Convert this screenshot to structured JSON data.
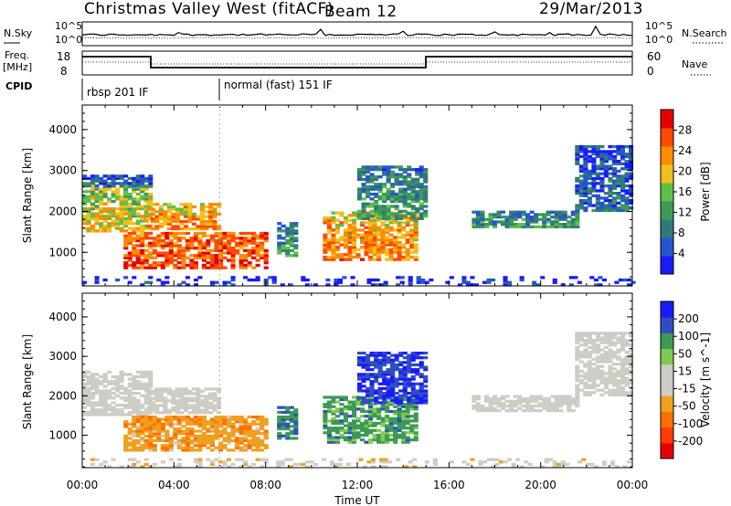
{
  "header": {
    "station": "Christmas Valley West (fitACF)",
    "beam": "Beam 12",
    "date": "29/Mar/2013"
  },
  "status_panels": {
    "noise": {
      "label_left": "N.Sky",
      "label_right": "N.Search",
      "tick_top": "10^5",
      "tick_bottom": "10^0"
    },
    "frequency": {
      "label_left_1": "Freq.",
      "label_left_2": "[MHz]",
      "label_right": "Nave",
      "left_ticks": [
        "18",
        "8"
      ],
      "right_ticks": [
        "60",
        "0"
      ]
    },
    "cpid": {
      "label": "CPID",
      "segments": [
        "rbsp 201 IF",
        "normal (fast) 151 IF"
      ],
      "switch_hour": 6
    }
  },
  "chart_data": [
    {
      "type": "heatmap",
      "parameter": "Power",
      "ylabel": "Slant Range [km]",
      "xlabel": "Time UT",
      "x_ticks": [
        "00:00",
        "04:00",
        "08:00",
        "12:00",
        "16:00",
        "20:00",
        "00:00"
      ],
      "xlim_hours": [
        0,
        24
      ],
      "ylim_km": [
        180,
        4600
      ],
      "y_ticks": [
        1000,
        2000,
        3000,
        4000
      ],
      "colorbar": {
        "label": "Power [dB]",
        "ticks": [
          4,
          8,
          12,
          16,
          20,
          24,
          28
        ],
        "range": [
          0,
          32
        ],
        "colors": [
          "#1a1aff",
          "#2655cc",
          "#2f7a7a",
          "#3d9a55",
          "#5fbf4a",
          "#f0c020",
          "#ff8c00",
          "#ff4a00",
          "#e60000"
        ]
      },
      "echo_regions": [
        {
          "t_start": 0.0,
          "t_end": 3.0,
          "r_low": 1500,
          "r_high": 2600,
          "level": 20
        },
        {
          "t_start": 0.0,
          "t_end": 3.0,
          "r_low": 2600,
          "r_high": 2900,
          "level": 8
        },
        {
          "t_start": 2.8,
          "t_end": 6.0,
          "r_low": 1550,
          "r_high": 2200,
          "level": 24
        },
        {
          "t_start": 1.8,
          "t_end": 8.0,
          "r_low": 600,
          "r_high": 1500,
          "level": 28
        },
        {
          "t_start": 8.5,
          "t_end": 9.3,
          "r_low": 900,
          "r_high": 1700,
          "level": 12
        },
        {
          "t_start": 10.5,
          "t_end": 14.6,
          "r_low": 800,
          "r_high": 2000,
          "level": 24
        },
        {
          "t_start": 12.0,
          "t_end": 15.0,
          "r_low": 1800,
          "r_high": 3100,
          "level": 12
        },
        {
          "t_start": 17.0,
          "t_end": 21.5,
          "r_low": 1600,
          "r_high": 2000,
          "level": 12
        },
        {
          "t_start": 21.5,
          "t_end": 24.0,
          "r_low": 2000,
          "r_high": 3600,
          "level": 8
        },
        {
          "t_start": 0.0,
          "t_end": 24.0,
          "r_low": 180,
          "r_high": 400,
          "level": 4
        }
      ]
    },
    {
      "type": "heatmap",
      "parameter": "Velocity",
      "ylabel": "Slant Range [km]",
      "xlabel": "Time UT",
      "x_ticks": [
        "00:00",
        "04:00",
        "08:00",
        "12:00",
        "16:00",
        "20:00",
        "00:00"
      ],
      "xlim_hours": [
        0,
        24
      ],
      "ylim_km": [
        180,
        4600
      ],
      "y_ticks": [
        1000,
        2000,
        3000,
        4000
      ],
      "colorbar": {
        "label": "Velocity [m s^-1]",
        "ticks": [
          200,
          100,
          50,
          15,
          -15,
          -50,
          -100,
          -200
        ],
        "range": [
          -250,
          250
        ],
        "colors": [
          "#e60000",
          "#ff3c00",
          "#ff7000",
          "#f0a020",
          "#cdcdc5",
          "#cdcdc5",
          "#7fcc50",
          "#3d9a55",
          "#2f4fc0",
          "#1a1aff"
        ]
      },
      "echo_regions": [
        {
          "t_start": 0.0,
          "t_end": 3.0,
          "r_low": 1500,
          "r_high": 2600,
          "level": 0
        },
        {
          "t_start": 2.8,
          "t_end": 6.0,
          "r_low": 1550,
          "r_high": 2200,
          "level": 0
        },
        {
          "t_start": 1.8,
          "t_end": 8.0,
          "r_low": 600,
          "r_high": 1500,
          "level": -80
        },
        {
          "t_start": 8.5,
          "t_end": 9.3,
          "r_low": 900,
          "r_high": 1700,
          "level": 150
        },
        {
          "t_start": 10.5,
          "t_end": 14.6,
          "r_low": 800,
          "r_high": 2000,
          "level": 120
        },
        {
          "t_start": 12.0,
          "t_end": 15.0,
          "r_low": 1800,
          "r_high": 3100,
          "level": 200
        },
        {
          "t_start": 17.0,
          "t_end": 21.5,
          "r_low": 1600,
          "r_high": 2000,
          "level": 0
        },
        {
          "t_start": 21.5,
          "t_end": 24.0,
          "r_low": 2000,
          "r_high": 3600,
          "level": 0
        },
        {
          "t_start": 0.0,
          "t_end": 24.0,
          "r_low": 180,
          "r_high": 400,
          "level": -30
        }
      ]
    }
  ]
}
